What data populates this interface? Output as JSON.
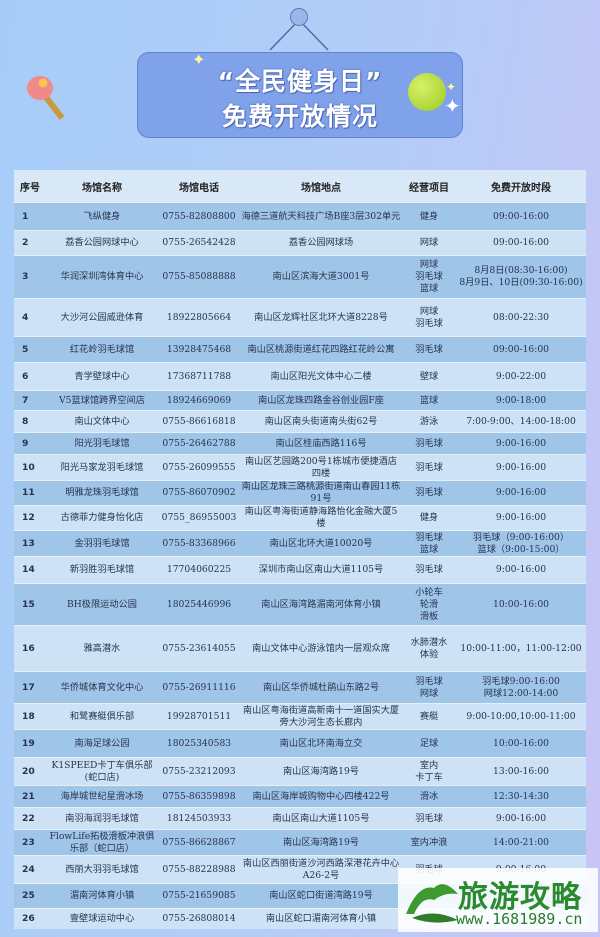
{
  "header": {
    "title_line1": "“全民健身日”",
    "title_line2": "免费开放情况",
    "icons": [
      "ping-pong-paddle-icon",
      "tennis-ball-icon",
      "sparkle-icon"
    ]
  },
  "table": {
    "columns": [
      "序号",
      "场馆名称",
      "场馆电话",
      "场馆地点",
      "经营项目",
      "免费开放时段"
    ],
    "rows": [
      {
        "no": "1",
        "name": "飞纵健身",
        "phone": "0755-82808800",
        "address": "海德三道航天科技广场B座3层302单元",
        "sport": [
          "健身"
        ],
        "time": [
          "09:00-16:00"
        ]
      },
      {
        "no": "2",
        "name": "荔香公园网球中心",
        "phone": "0755-26542428",
        "address": "荔香公园网球场",
        "sport": [
          "网球"
        ],
        "time": [
          "09:00-16:00"
        ]
      },
      {
        "no": "3",
        "name": "华润深圳湾体育中心",
        "phone": "0755-85088888",
        "address": "南山区滨海大道3001号",
        "sport": [
          "网球",
          "羽毛球",
          "篮球"
        ],
        "time": [
          "8月8日(08:30-16:00)",
          "8月9日、10日(09:30-16:00)"
        ]
      },
      {
        "no": "4",
        "name": "大沙河公园威逊体育",
        "phone": "18922805664",
        "address": "南山区龙辉社区北环大道8228号",
        "sport": [
          "网球",
          "羽毛球"
        ],
        "time": [
          "08:00-22:30"
        ]
      },
      {
        "no": "5",
        "name": "红花岭羽毛球馆",
        "phone": "13928475468",
        "address": "南山区桃源街道红花四路红花岭公寓",
        "sport": [
          "羽毛球"
        ],
        "time": [
          "09:00-16:00"
        ]
      },
      {
        "no": "6",
        "name": "青学壁球中心",
        "phone": "17368711788",
        "address": "南山区阳光文体中心二楼",
        "sport": [
          "壁球"
        ],
        "time": [
          "9:00-22:00"
        ]
      },
      {
        "no": "7",
        "name": "V5篮球馆跨界空间店",
        "phone": "18924669069",
        "address": "南山区龙珠四路金谷创业园F座",
        "sport": [
          "篮球"
        ],
        "time": [
          "9:00-18:00"
        ]
      },
      {
        "no": "8",
        "name": "南山文体中心",
        "phone": "0755-86616818",
        "address": "南山区南头街道南头街62号",
        "sport": [
          "游泳"
        ],
        "time": [
          "7:00-9:00、14:00-18:00"
        ]
      },
      {
        "no": "9",
        "name": "阳光羽毛球馆",
        "phone": "0755-26462788",
        "address": "南山区桂庙西路116号",
        "sport": [
          "羽毛球"
        ],
        "time": [
          "9:00-16:00"
        ]
      },
      {
        "no": "10",
        "name": "阳光马家龙羽毛球馆",
        "phone": "0755-26099555",
        "address": "南山区艺园路200号1栋城市便捷酒店四楼",
        "sport": [
          "羽毛球"
        ],
        "time": [
          "9:00-16:00"
        ]
      },
      {
        "no": "11",
        "name": "明雅龙珠羽毛球馆",
        "phone": "0755-86070902",
        "address": "南山区龙珠三路桃源街道南山春园11栋91号",
        "sport": [
          "羽毛球"
        ],
        "time": [
          "9:00-16:00"
        ]
      },
      {
        "no": "12",
        "name": "古德菲力健身怡化店",
        "phone": "0755_86955003",
        "address": "南山区粤海街道静海路怡化金融大厦5楼",
        "sport": [
          "健身"
        ],
        "time": [
          "9:00-16:00"
        ]
      },
      {
        "no": "13",
        "name": "金羽羽毛球馆",
        "phone": "0755-83368966",
        "address": "南山区北环大道10020号",
        "sport": [
          "羽毛球",
          "篮球"
        ],
        "time": [
          "羽毛球（9:00-16:00）",
          "篮球（9:00-15:00）"
        ]
      },
      {
        "no": "14",
        "name": "新羽胜羽毛球馆",
        "phone": "17704060225",
        "address": "深圳市南山区南山大道1105号",
        "sport": [
          "羽毛球"
        ],
        "time": [
          "9:00-16:00"
        ]
      },
      {
        "no": "15",
        "name": "BH极限运动公园",
        "phone": "18025446996",
        "address": "南山区海湾路湄南河体育小镇",
        "sport": [
          "小轮车",
          "轮滑",
          "滑板"
        ],
        "time": [
          "10:00-16:00"
        ]
      },
      {
        "no": "16",
        "name": "雅高潜水",
        "phone": "0755-23614055",
        "address": "南山文体中心游泳馆内一层观众席",
        "sport": [
          "水肺潜水",
          "体验"
        ],
        "time": [
          "10:00-11:00，11:00-12:00"
        ]
      },
      {
        "no": "17",
        "name": "华侨城体育文化中心",
        "phone": "0755-26911116",
        "address": "南山区华侨城杜鹃山东路2号",
        "sport": [
          "羽毛球",
          "网球"
        ],
        "time": [
          "羽毛球9:00-16:00",
          "网球12:00-14:00"
        ]
      },
      {
        "no": "18",
        "name": "和鹭赛艇俱乐部",
        "phone": "19928701511",
        "address": "南山区粤海街道高新南十一道国实大厦旁大沙河生态长廊内",
        "sport": [
          "赛艇"
        ],
        "time": [
          "9:00-10:00,10:00-11:00"
        ]
      },
      {
        "no": "19",
        "name": "南海足球公园",
        "phone": "18025340583",
        "address": "南山区北环南海立交",
        "sport": [
          "足球"
        ],
        "time": [
          "10:00-16:00"
        ]
      },
      {
        "no": "20",
        "name": "K1SPEED卡丁车俱乐部(蛇口店)",
        "phone": "0755-23212093",
        "address": "南山区海湾路19号",
        "sport": [
          "室内",
          "卡丁车"
        ],
        "time": [
          "13:00-16:00"
        ]
      },
      {
        "no": "21",
        "name": "海岸城世纪星滑冰场",
        "phone": "0755-86359898",
        "address": "南山区海岸城购物中心四楼422号",
        "sport": [
          "滑冰"
        ],
        "time": [
          "12:30-14:30"
        ]
      },
      {
        "no": "22",
        "name": "南羽海润羽毛球馆",
        "phone": "18124503933",
        "address": "南山区南山大道1105号",
        "sport": [
          "羽毛球"
        ],
        "time": [
          "9:00-16:00"
        ]
      },
      {
        "no": "23",
        "name": "FlowLife拓极滑板冲浪俱乐部（蛇口店）",
        "phone": "0755-86628867",
        "address": "南山区海湾路19号",
        "sport": [
          "室内冲浪"
        ],
        "time": [
          "14:00-21:00"
        ]
      },
      {
        "no": "24",
        "name": "西丽大羽羽毛球馆",
        "phone": "0755-88228988",
        "address": "南山区西丽街道沙河西路深港花卉中心A26-2号",
        "sport": [
          "羽毛球"
        ],
        "time": [
          "9:00-16:00"
        ]
      },
      {
        "no": "25",
        "name": "湄南河体育小镇",
        "phone": "0755-21659085",
        "address": "南山区蛇口街道湾路19号",
        "sport": [],
        "time": []
      },
      {
        "no": "26",
        "name": "壹壁球运动中心",
        "phone": "0755-26808014",
        "address": "南山区蛇口湄南河体育小镇",
        "sport": [],
        "time": []
      }
    ]
  },
  "watermark": {
    "text": "旅游攻略",
    "url": "www.1681989.cn"
  }
}
